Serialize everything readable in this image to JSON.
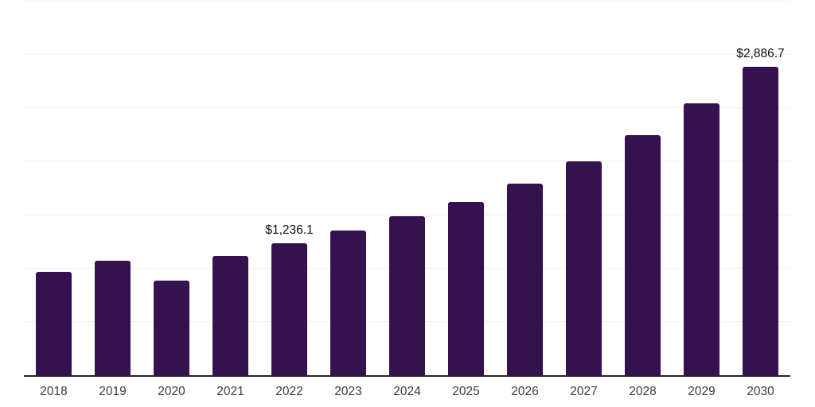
{
  "colors": {
    "bar": "#36114f",
    "grid": "#f1f1f1",
    "axis": "#262626",
    "tick_label": "#3d3d3d",
    "value_label": "#0d0d0d",
    "background": "#ffffff"
  },
  "chart_data": {
    "type": "bar",
    "title": "",
    "xlabel": "",
    "ylabel": "",
    "categories": [
      "2018",
      "2019",
      "2020",
      "2021",
      "2022",
      "2023",
      "2024",
      "2025",
      "2026",
      "2027",
      "2028",
      "2029",
      "2030"
    ],
    "values": [
      970,
      1075,
      888,
      1119,
      1236.1,
      1355,
      1487,
      1625,
      1795,
      2000,
      2252,
      2545,
      2886.7
    ],
    "value_labels": [
      "",
      "",
      "",
      "",
      "$1,236.1",
      "",
      "",
      "",
      "",
      "",
      "",
      "",
      "$2,886.7"
    ],
    "ylim": [
      0,
      3500
    ],
    "gridline_step": 500,
    "grid": "horizontal",
    "legend": "none",
    "y_axis_tick_labels_visible": false,
    "value_prefix": "$"
  }
}
